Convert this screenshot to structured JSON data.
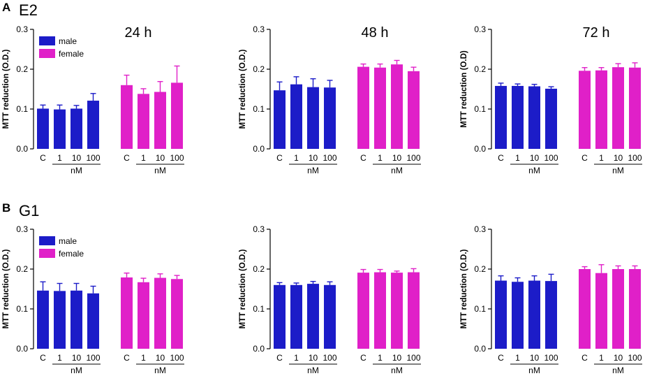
{
  "figure": {
    "panels": [
      {
        "letter": "A",
        "treatment": "E2"
      },
      {
        "letter": "B",
        "treatment": "G1"
      }
    ],
    "legend": {
      "male": "male",
      "female": "female"
    },
    "colors": {
      "male": "#1c1cc8",
      "female": "#e020c8"
    }
  },
  "chart_data": [
    {
      "type": "bar",
      "panel": "A",
      "treatment": "E2",
      "time": "24 h",
      "ylabel": "MTT reduction (O.D.)",
      "ylim": [
        0,
        0.3
      ],
      "yticks": [
        "0.0",
        "0.1",
        "0.2",
        "0.3"
      ],
      "categories": [
        "C",
        "1",
        "10",
        "100"
      ],
      "unit": "nM",
      "legend": true,
      "series": [
        {
          "name": "male",
          "values": [
            0.101,
            0.099,
            0.101,
            0.121
          ],
          "errors": [
            0.009,
            0.011,
            0.008,
            0.018
          ]
        },
        {
          "name": "female",
          "values": [
            0.16,
            0.138,
            0.143,
            0.166
          ],
          "errors": [
            0.025,
            0.013,
            0.026,
            0.042
          ]
        }
      ]
    },
    {
      "type": "bar",
      "panel": "A",
      "treatment": "E2",
      "time": "48 h",
      "ylabel": "MTT reduction (O.D.)",
      "ylim": [
        0,
        0.3
      ],
      "yticks": [
        "0.0",
        "0.1",
        "0.2",
        "0.3"
      ],
      "categories": [
        "C",
        "1",
        "10",
        "100"
      ],
      "unit": "nM",
      "legend": false,
      "series": [
        {
          "name": "male",
          "values": [
            0.147,
            0.162,
            0.155,
            0.154
          ],
          "errors": [
            0.021,
            0.019,
            0.021,
            0.018
          ]
        },
        {
          "name": "female",
          "values": [
            0.206,
            0.204,
            0.212,
            0.195
          ],
          "errors": [
            0.007,
            0.009,
            0.01,
            0.01
          ]
        }
      ]
    },
    {
      "type": "bar",
      "panel": "A",
      "treatment": "E2",
      "time": "72 h",
      "ylabel": "MTT reduction (O.D)",
      "ylim": [
        0,
        0.3
      ],
      "yticks": [
        "0.0",
        "0.1",
        "0.2",
        "0.3"
      ],
      "categories": [
        "C",
        "1",
        "10",
        "100"
      ],
      "unit": "nM",
      "legend": false,
      "series": [
        {
          "name": "male",
          "values": [
            0.158,
            0.158,
            0.157,
            0.151
          ],
          "errors": [
            0.007,
            0.005,
            0.005,
            0.005
          ]
        },
        {
          "name": "female",
          "values": [
            0.196,
            0.197,
            0.205,
            0.204
          ],
          "errors": [
            0.008,
            0.007,
            0.009,
            0.012
          ]
        }
      ]
    },
    {
      "type": "bar",
      "panel": "B",
      "treatment": "G1",
      "time": "",
      "ylabel": "MTT reduction (O.D.)",
      "ylim": [
        0,
        0.3
      ],
      "yticks": [
        "0.0",
        "0.1",
        "0.2",
        "0.3"
      ],
      "categories": [
        "C",
        "1",
        "10",
        "100"
      ],
      "unit": "nM",
      "legend": true,
      "series": [
        {
          "name": "male",
          "values": [
            0.146,
            0.145,
            0.146,
            0.139
          ],
          "errors": [
            0.022,
            0.019,
            0.018,
            0.018
          ]
        },
        {
          "name": "female",
          "values": [
            0.179,
            0.167,
            0.178,
            0.175
          ],
          "errors": [
            0.011,
            0.01,
            0.01,
            0.009
          ]
        }
      ]
    },
    {
      "type": "bar",
      "panel": "B",
      "treatment": "G1",
      "time": "",
      "ylabel": "MTT reduction (O.D.)",
      "ylim": [
        0,
        0.3
      ],
      "yticks": [
        "0.0",
        "0.1",
        "0.2",
        "0.3"
      ],
      "categories": [
        "C",
        "1",
        "10",
        "100"
      ],
      "unit": "nM",
      "legend": false,
      "series": [
        {
          "name": "male",
          "values": [
            0.16,
            0.16,
            0.163,
            0.16
          ],
          "errors": [
            0.006,
            0.005,
            0.006,
            0.008
          ]
        },
        {
          "name": "female",
          "values": [
            0.191,
            0.192,
            0.191,
            0.192
          ],
          "errors": [
            0.008,
            0.007,
            0.004,
            0.009
          ]
        }
      ]
    },
    {
      "type": "bar",
      "panel": "B",
      "treatment": "G1",
      "time": "",
      "ylabel": "MTT reduction (O.D.)",
      "ylim": [
        0,
        0.3
      ],
      "yticks": [
        "0.0",
        "0.1",
        "0.2",
        "0.3"
      ],
      "categories": [
        "C",
        "1",
        "10",
        "100"
      ],
      "unit": "nM",
      "legend": false,
      "series": [
        {
          "name": "male",
          "values": [
            0.171,
            0.168,
            0.171,
            0.17
          ],
          "errors": [
            0.012,
            0.01,
            0.012,
            0.017
          ]
        },
        {
          "name": "female",
          "values": [
            0.2,
            0.19,
            0.2,
            0.2
          ],
          "errors": [
            0.006,
            0.021,
            0.008,
            0.008
          ]
        }
      ]
    }
  ]
}
